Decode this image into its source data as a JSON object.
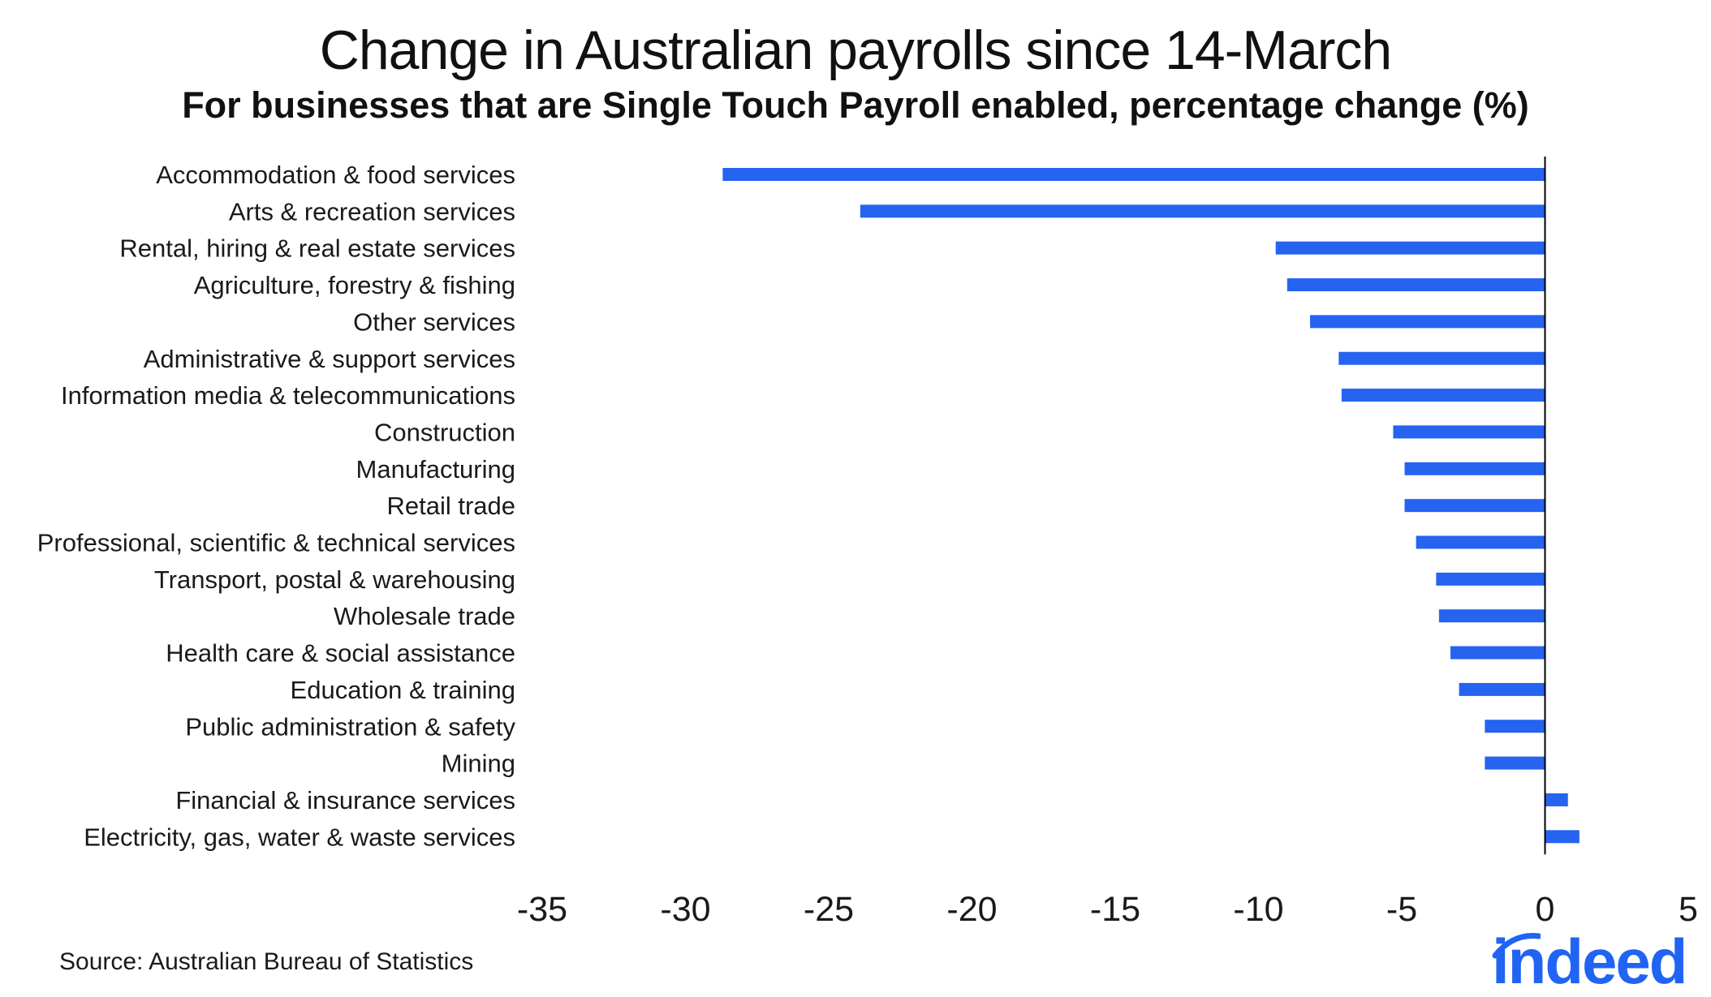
{
  "colors": {
    "bar": "#2563f0",
    "axis": "#000000",
    "text": "#1a1a1a",
    "brand": "#2164f3"
  },
  "source": "Source: Australian Bureau of Statistics",
  "brand": {
    "name": "indeed",
    "icon": "indeed-logo"
  },
  "chart_data": {
    "type": "bar",
    "orientation": "horizontal",
    "title": "Change in Australian payrolls since 14-March",
    "subtitle": "For businesses that are Single Touch Payroll enabled, percentage change (%)",
    "xlabel": "",
    "ylabel": "",
    "xlim": [
      -35,
      5
    ],
    "xticks": [
      -35,
      -30,
      -25,
      -20,
      -15,
      -10,
      -5,
      0,
      5
    ],
    "grid": false,
    "legend": "none",
    "categories": [
      "Accommodation & food services",
      "Arts & recreation services",
      "Rental, hiring & real estate services",
      "Agriculture, forestry & fishing",
      "Other services",
      "Administrative & support services",
      "Information media & telecommunications",
      "Construction",
      "Manufacturing",
      "Retail trade",
      "Professional, scientific & technical services",
      "Transport, postal & warehousing",
      "Wholesale trade",
      "Health care & social assistance",
      "Education & training",
      "Public administration & safety",
      "Mining",
      "Financial & insurance services",
      "Electricity, gas, water & waste services"
    ],
    "values": [
      -28.7,
      -23.9,
      -9.4,
      -9.0,
      -8.2,
      -7.2,
      -7.1,
      -5.3,
      -4.9,
      -4.9,
      -4.5,
      -3.8,
      -3.7,
      -3.3,
      -3.0,
      -2.1,
      -2.1,
      0.8,
      1.2
    ]
  }
}
